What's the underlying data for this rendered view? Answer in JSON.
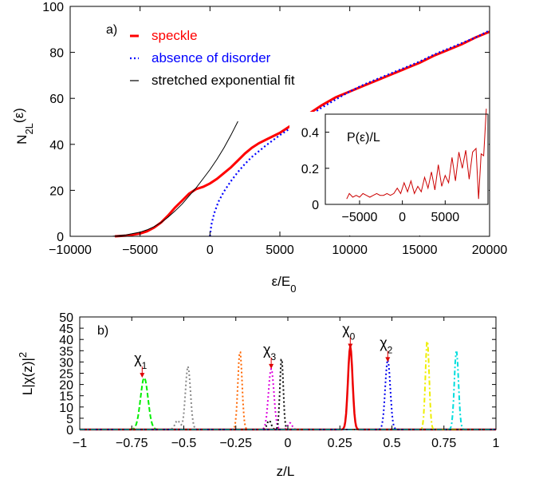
{
  "chart_data": [
    {
      "type": "line",
      "panel_label": "a)",
      "xlabel": "ε/E",
      "xlabel_sub": "0",
      "ylabel": "N",
      "ylabel_sub": "2L",
      "ylabel_tail": "(ε)",
      "xlim": [
        -10000,
        20000
      ],
      "ylim": [
        0,
        100
      ],
      "xticks": [
        -10000,
        -5000,
        0,
        5000,
        10000,
        15000,
        20000
      ],
      "xtick_labels": [
        "−10000",
        "−5000",
        "0",
        "5000",
        "10000",
        "15000",
        "20000"
      ],
      "yticks": [
        0,
        20,
        40,
        60,
        80,
        100
      ],
      "ytick_labels": [
        "0",
        "20",
        "40",
        "60",
        "80",
        "100"
      ],
      "legend": "top-left",
      "series": [
        {
          "name": "speckle",
          "color": "#ff0000",
          "style": "solid-thick",
          "x": [
            -6800,
            -6000,
            -5000,
            -4500,
            -4000,
            -3500,
            -3000,
            -2500,
            -2000,
            -1500,
            -1000,
            -500,
            0,
            500,
            1000,
            1500,
            2000,
            2500,
            3000,
            3500,
            4000,
            5000,
            6000,
            7000,
            8000,
            9000,
            10000,
            11000,
            12000,
            13000,
            14000,
            15000,
            16000,
            17000,
            18000,
            19000,
            20000
          ],
          "y": [
            0,
            0.3,
            1.2,
            2.2,
            3.8,
            6,
            9,
            12.5,
            15.5,
            18.5,
            20.5,
            21.5,
            23,
            25,
            27.5,
            30,
            33,
            36,
            38.5,
            40.5,
            42,
            45,
            49,
            53,
            57,
            60.5,
            63,
            65.5,
            68,
            70.5,
            73,
            75.5,
            78.5,
            81,
            83.5,
            86.5,
            89
          ]
        },
        {
          "name": "absence of disorder",
          "color": "#0000ff",
          "style": "dotted",
          "x": [
            0,
            100,
            300,
            600,
            1000,
            1500,
            2000,
            2500,
            3000,
            3500,
            4000,
            5000,
            6000,
            7000,
            8000,
            9000,
            10000,
            11000,
            12000,
            13000,
            14000,
            15000,
            16000,
            17000,
            18000,
            19000,
            20000
          ],
          "y": [
            0,
            5,
            10,
            15,
            19.5,
            24,
            28,
            31.5,
            34.5,
            37,
            39.5,
            44,
            48,
            52,
            56,
            59.5,
            63,
            66,
            68.5,
            71,
            73.5,
            76,
            79,
            81.5,
            84,
            86.5,
            89.5
          ]
        },
        {
          "name": "stretched exponential fit",
          "color": "#000000",
          "style": "solid-thin",
          "x": [
            -7000,
            -6000,
            -5000,
            -4500,
            -4000,
            -3500,
            -3000,
            -2500,
            -2000,
            -1500,
            -1000,
            -500,
            0,
            500,
            1000,
            1500,
            2000
          ],
          "y": [
            0,
            0.6,
            1.8,
            2.8,
            4.2,
            6,
            8.3,
            11,
            14,
            17.5,
            21,
            25,
            29,
            33.5,
            38.5,
            44,
            50
          ]
        }
      ],
      "inset": {
        "ylabel": "P(ε)/L",
        "xlim": [
          -9000,
          10000
        ],
        "ylim": [
          0,
          0.5
        ],
        "xticks": [
          -5000,
          0,
          5000
        ],
        "xtick_labels": [
          "−5000",
          "0",
          "5000"
        ],
        "yticks": [
          0,
          0.2,
          0.4
        ],
        "ytick_labels": [
          "0",
          "0.2",
          "0.4"
        ],
        "series": [
          {
            "color": "#cc0000",
            "x": [
              -6500,
              -6200,
              -5800,
              -5400,
              -5000,
              -4600,
              -4200,
              -3800,
              -3400,
              -3000,
              -2600,
              -2200,
              -1800,
              -1400,
              -1000,
              -600,
              -200,
              200,
              600,
              1000,
              1400,
              1800,
              2200,
              2600,
              3000,
              3400,
              3800,
              4200,
              4600,
              5000,
              5400,
              5800,
              6200,
              6600,
              7000,
              7400,
              7800,
              8200,
              8600,
              8900,
              9200,
              9500,
              9800
            ],
            "y": [
              0.03,
              0.06,
              0.04,
              0.05,
              0.04,
              0.06,
              0.05,
              0.04,
              0.05,
              0.06,
              0.05,
              0.05,
              0.06,
              0.05,
              0.06,
              0.09,
              0.06,
              0.12,
              0.07,
              0.13,
              0.06,
              0.1,
              0.07,
              0.15,
              0.09,
              0.18,
              0.08,
              0.22,
              0.1,
              0.16,
              0.12,
              0.26,
              0.13,
              0.29,
              0.2,
              0.3,
              0.14,
              0.29,
              0.31,
              0.03,
              0.28,
              0.27,
              0.53
            ]
          }
        ]
      }
    },
    {
      "type": "line",
      "panel_label": "b)",
      "xlabel": "z/L",
      "ylabel": "L|χ(z)|",
      "ylabel_sup": "2",
      "xlim": [
        -1,
        1
      ],
      "ylim": [
        0,
        50
      ],
      "xticks": [
        -1,
        -0.75,
        -0.5,
        -0.25,
        0,
        0.25,
        0.5,
        0.75,
        1
      ],
      "xtick_labels": [
        "−1",
        "−0.75",
        "−0.5",
        "−0.25",
        "0",
        "0.25",
        "0.5",
        "0.75",
        "1"
      ],
      "yticks": [
        0,
        5,
        10,
        15,
        20,
        25,
        30,
        35,
        40,
        45,
        50
      ],
      "ytick_labels": [
        "0",
        "5",
        "10",
        "15",
        "20",
        "25",
        "30",
        "35",
        "40",
        "45",
        "50"
      ],
      "annotations": [
        {
          "label": "χ",
          "sub": "1",
          "x": -0.7,
          "y": 23
        },
        {
          "label": "χ",
          "sub": "3",
          "x": -0.08,
          "y": 27
        },
        {
          "label": "χ",
          "sub": "0",
          "x": 0.3,
          "y": 36
        },
        {
          "label": "χ",
          "sub": "2",
          "x": 0.48,
          "y": 30
        }
      ],
      "series": [
        {
          "color": "#00ee00",
          "style": "dashed",
          "peaks": [
            [
              -0.69,
              23,
              0.018
            ]
          ]
        },
        {
          "color": "#888888",
          "style": "dotted",
          "peaks": [
            [
              -0.48,
              28,
              0.012
            ],
            [
              -0.53,
              4,
              0.012
            ]
          ]
        },
        {
          "color": "#ff6600",
          "style": "dotted",
          "peaks": [
            [
              -0.23,
              35,
              0.01
            ]
          ]
        },
        {
          "color": "#dd00dd",
          "style": "dotted",
          "peaks": [
            [
              -0.08,
              27,
              0.013
            ],
            [
              0.01,
              3,
              0.01
            ]
          ]
        },
        {
          "color": "#000000",
          "style": "dotted",
          "peaks": [
            [
              -0.03,
              32,
              0.008
            ],
            [
              -0.09,
              4,
              0.01
            ]
          ]
        },
        {
          "color": "#ee0000",
          "style": "solid",
          "peaks": [
            [
              0.3,
              37,
              0.011
            ]
          ]
        },
        {
          "color": "#0000ee",
          "style": "dotted",
          "peaks": [
            [
              0.48,
              31,
              0.012
            ]
          ]
        },
        {
          "color": "#eeee00",
          "style": "dash-dot",
          "peaks": [
            [
              0.67,
              40,
              0.009
            ]
          ]
        },
        {
          "color": "#00dddd",
          "style": "dash-dot",
          "peaks": [
            [
              0.81,
              35,
              0.01
            ]
          ]
        }
      ]
    }
  ]
}
